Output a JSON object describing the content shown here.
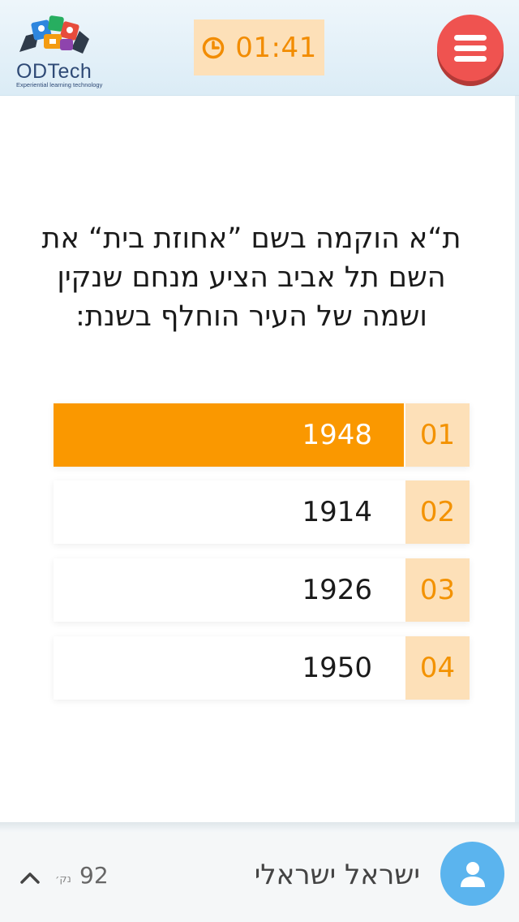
{
  "header": {
    "logo_text": "ODTech",
    "logo_subtitle": "Experiential learning technology",
    "timer": "01:41"
  },
  "question": {
    "text": "ת“א הוקמה בשם ”אחוזת בית“ את השם תל אביב הציע מנחם שנקין ושמה של העיר הוחלף בשנת:"
  },
  "answers": [
    {
      "number": "01",
      "value": "1948",
      "selected": true
    },
    {
      "number": "02",
      "value": "1914",
      "selected": false
    },
    {
      "number": "03",
      "value": "1926",
      "selected": false
    },
    {
      "number": "04",
      "value": "1950",
      "selected": false
    }
  ],
  "footer": {
    "user_name": "ישראל ישראלי",
    "points": "92",
    "points_unit": "נק׳"
  },
  "colors": {
    "accent_orange": "#fa9800",
    "number_bg": "#fde0b8",
    "menu_red": "#ef5350",
    "avatar_blue": "#5bb4ee"
  },
  "icons": {
    "timer": "clock-icon",
    "menu": "hamburger-icon",
    "expand": "chevron-up-icon",
    "avatar": "user-icon"
  }
}
